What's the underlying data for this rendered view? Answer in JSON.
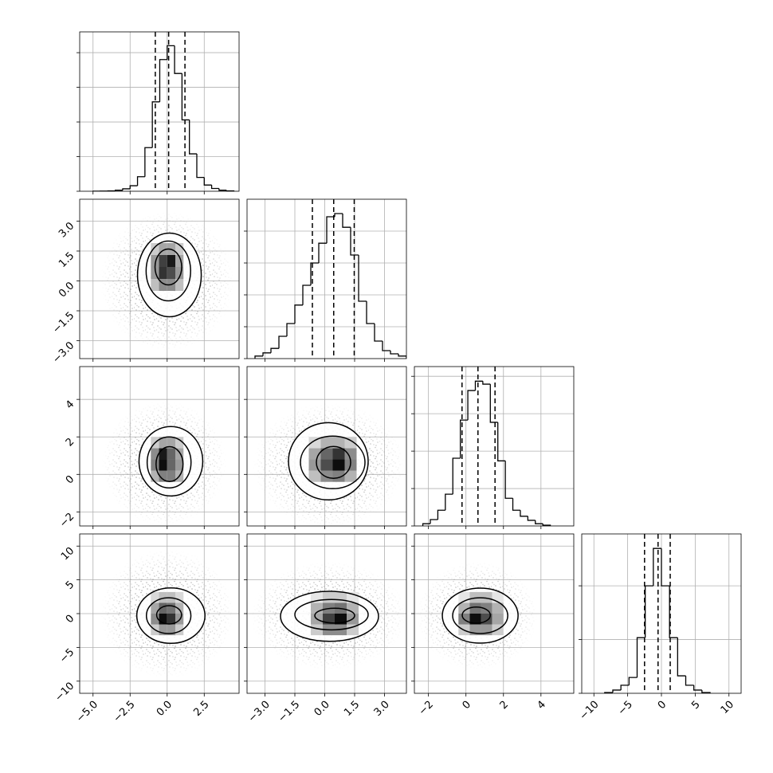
{
  "chart_data": {
    "type": "corner",
    "grid": true,
    "color": "#000000",
    "variables": [
      {
        "lim": [
          -5.9,
          4.85
        ],
        "ticks": [
          {
            "value": -5,
            "label": "−5.0"
          },
          {
            "value": -2.5,
            "label": "−2.5"
          },
          {
            "value": 0,
            "label": "0.0"
          },
          {
            "value": 2.5,
            "label": "2.5"
          }
        ],
        "quantiles": [
          -0.8,
          0.1,
          1.2
        ]
      },
      {
        "lim": [
          -3.9,
          4.1
        ],
        "ticks": [
          {
            "value": -3,
            "label": "−3.0"
          },
          {
            "value": -1.5,
            "label": "−1.5"
          },
          {
            "value": 0,
            "label": "0.0"
          },
          {
            "value": 1.5,
            "label": "1.5"
          },
          {
            "value": 3,
            "label": "3.0"
          }
        ],
        "quantiles": [
          -0.62,
          0.45,
          1.48
        ]
      },
      {
        "lim": [
          -2.75,
          5.75
        ],
        "ticks": [
          {
            "value": -2,
            "label": "−2"
          },
          0,
          2,
          4
        ],
        "quantiles": [
          -0.21,
          0.64,
          1.55
        ]
      },
      {
        "lim": [
          -11.8,
          11.8
        ],
        "ticks": [
          {
            "value": -10,
            "label": "−10"
          },
          {
            "value": -5,
            "label": "−5"
          },
          0,
          5,
          10
        ],
        "quantiles": [
          -2.5,
          -0.5,
          1.3
        ]
      }
    ],
    "histograms": [
      {
        "bins": [
          -5,
          -4.5,
          -4,
          -3.5,
          -3,
          -2.5,
          -2,
          -1.5,
          -1,
          -0.5,
          0,
          0.5,
          1,
          1.5,
          2,
          2.5,
          3,
          3.5,
          4,
          4.5
        ],
        "counts": [
          1,
          3,
          6,
          15,
          35,
          80,
          210,
          630,
          1290,
          1900,
          2100,
          1700,
          1030,
          540,
          200,
          90,
          40,
          15,
          5
        ],
        "ylim": [
          0,
          2300
        ],
        "yticks": [
          0,
          500,
          1000,
          1500,
          2000
        ]
      },
      {
        "bins": [
          -3.5,
          -3.1,
          -2.7,
          -2.3,
          -1.9,
          -1.5,
          -1.1,
          -0.7,
          -0.3,
          0.1,
          0.5,
          0.9,
          1.3,
          1.7,
          2.1,
          2.5,
          2.9,
          3.3,
          3.7,
          4.1
        ],
        "counts": [
          40,
          90,
          160,
          350,
          550,
          840,
          1150,
          1500,
          1810,
          2225,
          2275,
          2060,
          1625,
          900,
          550,
          275,
          125,
          75,
          40
        ],
        "ylim": [
          0,
          2500
        ],
        "yticks": [
          0,
          500,
          1000,
          1500,
          2000
        ]
      },
      {
        "bins": [
          -2.3,
          -1.9,
          -1.5,
          -1.1,
          -0.7,
          -0.3,
          0.1,
          0.5,
          0.9,
          1.3,
          1.7,
          2.1,
          2.5,
          2.9,
          3.3,
          3.7,
          4.1,
          4.5
        ],
        "counts": [
          30,
          85,
          210,
          425,
          905,
          1415,
          1810,
          1935,
          1895,
          1385,
          870,
          370,
          210,
          130,
          75,
          30,
          10
        ],
        "ylim": [
          0,
          2130
        ],
        "yticks": [
          0,
          500,
          1000,
          1500,
          2000
        ]
      },
      {
        "bins": [
          -8.4,
          -7.2,
          -6,
          -4.8,
          -3.6,
          -2.4,
          -1.2,
          0,
          1.2,
          2.4,
          3.6,
          4.8,
          6,
          7.2
        ],
        "counts": [
          30,
          120,
          300,
          590,
          2070,
          4000,
          5390,
          4000,
          2070,
          650,
          300,
          120,
          30
        ],
        "ylim": [
          0,
          5930
        ],
        "yticks": [
          0,
          2000,
          4000
        ]
      }
    ],
    "pairs": [
      {
        "cloud": {
          "cx": 0,
          "cy": 0,
          "rx": 4.5,
          "ry": 3.5
        },
        "cells": {
          "x": [
            -1.1,
            -0.55,
            0,
            0.55,
            1.1
          ],
          "y": [
            -0.5,
            0.1,
            0.7,
            1.3,
            1.9
          ],
          "z": [
            [
              0.25,
              0.45,
              0.45,
              0.25
            ],
            [
              0.4,
              0.8,
              0.7,
              0.4
            ],
            [
              0.4,
              0.75,
              0.9,
              0.35
            ],
            [
              0.2,
              0.35,
              0.35,
              0.2
            ]
          ]
        },
        "contours": [
          {
            "cx": 0.15,
            "cy": 0.3,
            "rx": 2.15,
            "ry": 2.1
          },
          {
            "cx": 0.08,
            "cy": 0.5,
            "rx": 1.5,
            "ry": 1.5
          },
          {
            "cx": 0.08,
            "cy": 0.7,
            "rx": 0.9,
            "ry": 0.9
          }
        ]
      },
      {
        "cloud": {
          "cx": -0.2,
          "cy": 0.6,
          "rx": 4.2,
          "ry": 3.3
        },
        "cells": {
          "x": [
            -1.1,
            -0.55,
            0,
            0.55,
            1.1
          ],
          "y": [
            -0.4,
            0.2,
            0.8,
            1.4,
            2
          ],
          "z": [
            [
              0.3,
              0.5,
              0.5,
              0.3
            ],
            [
              0.5,
              0.95,
              0.6,
              0.4
            ],
            [
              0.45,
              0.9,
              0.6,
              0.35
            ],
            [
              0.2,
              0.35,
              0.35,
              0.2
            ]
          ]
        },
        "contours": [
          {
            "cx": 0.25,
            "cy": 0.7,
            "rx": 2.15,
            "ry": 1.85
          },
          {
            "cx": 0.13,
            "cy": 0.64,
            "rx": 1.48,
            "ry": 1.36
          },
          {
            "cx": 0.16,
            "cy": 0.55,
            "rx": 0.91,
            "ry": 0.93
          }
        ]
      },
      {
        "cloud": {
          "cx": 0.2,
          "cy": 0.5,
          "rx": 3.8,
          "ry": 3.3
        },
        "cells": {
          "x": [
            -0.8,
            -0.2,
            0.4,
            1,
            1.6
          ],
          "y": [
            -0.4,
            0.2,
            0.8,
            1.4,
            2
          ],
          "z": [
            [
              0.25,
              0.45,
              0.5,
              0.3
            ],
            [
              0.4,
              0.7,
              0.95,
              0.5
            ],
            [
              0.35,
              0.6,
              0.8,
              0.45
            ],
            [
              0.15,
              0.3,
              0.3,
              0.2
            ]
          ]
        },
        "contours": [
          {
            "cx": 0.18,
            "cy": 0.7,
            "rx": 2,
            "ry": 2.06
          },
          {
            "cx": 0.4,
            "cy": 0.64,
            "rx": 1.62,
            "ry": 1.4
          },
          {
            "cx": 0.44,
            "cy": 0.64,
            "rx": 0.86,
            "ry": 0.85
          }
        ]
      },
      {
        "cloud": {
          "cx": 0,
          "cy": 0,
          "rx": 4.5,
          "ry": 9.5
        },
        "cells": {
          "x": [
            -1.1,
            -0.55,
            0,
            0.55,
            1.1
          ],
          "y": [
            -3.2,
            -1.6,
            0,
            1.6,
            3.2
          ],
          "z": [
            [
              0.2,
              0.4,
              0.4,
              0.2
            ],
            [
              0.45,
              0.95,
              0.8,
              0.4
            ],
            [
              0.35,
              0.6,
              0.55,
              0.3
            ],
            [
              0.15,
              0.25,
              0.25,
              0.15
            ]
          ]
        },
        "contours": [
          {
            "cx": 0.25,
            "cy": -0.3,
            "rx": 2.3,
            "ry": 4.1
          },
          {
            "cx": 0.1,
            "cy": -0.3,
            "rx": 1.5,
            "ry": 2.65
          },
          {
            "cx": 0.13,
            "cy": -0.18,
            "rx": 0.84,
            "ry": 1.36
          }
        ]
      },
      {
        "cloud": {
          "cx": 0.2,
          "cy": -0.3,
          "rx": 3.9,
          "ry": 8
        },
        "cells": {
          "x": [
            -0.7,
            -0.1,
            0.5,
            1.1,
            1.7
          ],
          "y": [
            -3.2,
            -1.6,
            0,
            1.6,
            3.2
          ],
          "z": [
            [
              0.2,
              0.45,
              0.45,
              0.2
            ],
            [
              0.35,
              0.75,
              0.95,
              0.4
            ],
            [
              0.3,
              0.5,
              0.55,
              0.3
            ],
            [
              0.1,
              0.2,
              0.2,
              0.1
            ]
          ]
        },
        "contours": [
          {
            "cx": 0.24,
            "cy": -0.4,
            "rx": 2.46,
            "ry": 3.7
          },
          {
            "cx": 0.34,
            "cy": -0.15,
            "rx": 1.84,
            "ry": 2.25
          },
          {
            "cx": 0.5,
            "cy": -0.3,
            "rx": 1,
            "ry": 1.1
          }
        ]
      },
      {
        "cloud": {
          "cx": 0.6,
          "cy": -0.3,
          "rx": 3.2,
          "ry": 8
        },
        "cells": {
          "x": [
            -0.4,
            0.2,
            0.8,
            1.4,
            2
          ],
          "y": [
            -3.2,
            -1.6,
            0,
            1.6,
            3.2
          ],
          "z": [
            [
              0.2,
              0.4,
              0.4,
              0.2
            ],
            [
              0.5,
              0.95,
              0.7,
              0.35
            ],
            [
              0.3,
              0.55,
              0.5,
              0.3
            ],
            [
              0.1,
              0.25,
              0.25,
              0.1
            ]
          ]
        },
        "contours": [
          {
            "cx": 0.76,
            "cy": -0.3,
            "rx": 2.02,
            "ry": 4.07
          },
          {
            "cx": 0.76,
            "cy": -0.3,
            "rx": 1.47,
            "ry": 2.65
          },
          {
            "cx": 0.55,
            "cy": -0.23,
            "rx": 0.75,
            "ry": 1.2
          }
        ]
      }
    ]
  }
}
